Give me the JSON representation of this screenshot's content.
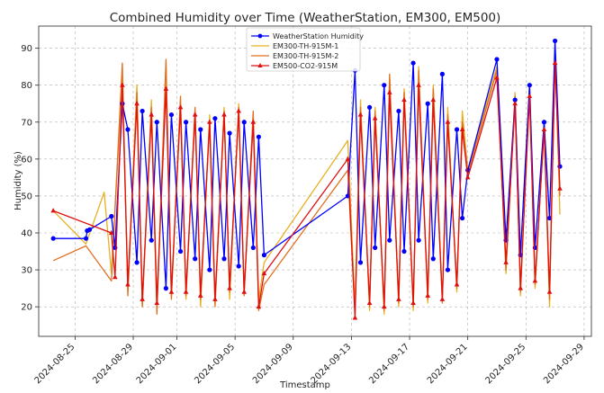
{
  "chart_data": {
    "type": "line",
    "title": "Combined Humidity over Time (WeatherStation, EM300, EM500)",
    "xlabel": "Timestamp",
    "ylabel": "Humidity (%)",
    "xlim": [
      "2024-08-22T12:00",
      "2024-09-29T12:00"
    ],
    "ylim": [
      12,
      96
    ],
    "yticks": [
      20,
      30,
      40,
      50,
      60,
      70,
      80,
      90
    ],
    "xticks": [
      "2024-08-25",
      "2024-08-29",
      "2024-09-01",
      "2024-09-05",
      "2024-09-09",
      "2024-09-13",
      "2024-09-17",
      "2024-09-21",
      "2024-09-25",
      "2024-09-29"
    ],
    "grid": true,
    "legend_position": "top-center",
    "series": [
      {
        "name": "WeatherStation Humidity",
        "color": "#0000ff",
        "marker": "circle",
        "points": [
          [
            "2024-08-23T12:00",
            38.5
          ],
          [
            "2024-08-25T18:00",
            38.5
          ],
          [
            "2024-08-25T20:00",
            40.6
          ],
          [
            "2024-08-26T00:00",
            40.9
          ],
          [
            "2024-08-27T12:00",
            44.5
          ],
          [
            "2024-08-27T18:00",
            36.0
          ],
          [
            "2024-08-28T06:00",
            75.0
          ],
          [
            "2024-08-28T15:00",
            68.0
          ],
          [
            "2024-08-29T06:00",
            32.0
          ],
          [
            "2024-08-29T15:00",
            73.0
          ],
          [
            "2024-08-30T06:00",
            38.0
          ],
          [
            "2024-08-30T15:00",
            70.0
          ],
          [
            "2024-08-31T06:00",
            25.0
          ],
          [
            "2024-08-31T15:00",
            72.0
          ],
          [
            "2024-09-01T06:00",
            35.0
          ],
          [
            "2024-09-01T15:00",
            70.0
          ],
          [
            "2024-09-02T06:00",
            33.0
          ],
          [
            "2024-09-02T15:00",
            68.0
          ],
          [
            "2024-09-03T06:00",
            30.0
          ],
          [
            "2024-09-03T15:00",
            71.0
          ],
          [
            "2024-09-04T06:00",
            33.0
          ],
          [
            "2024-09-04T15:00",
            67.0
          ],
          [
            "2024-09-05T06:00",
            31.0
          ],
          [
            "2024-09-05T15:00",
            70.0
          ],
          [
            "2024-09-06T06:00",
            36.0
          ],
          [
            "2024-09-06T15:00",
            66.0
          ],
          [
            "2024-09-07T00:00",
            34.0
          ],
          [
            "2024-09-12T18:00",
            50.0
          ],
          [
            "2024-09-13T06:00",
            84.0
          ],
          [
            "2024-09-13T15:00",
            32.0
          ],
          [
            "2024-09-14T06:00",
            74.0
          ],
          [
            "2024-09-14T15:00",
            36.0
          ],
          [
            "2024-09-15T06:00",
            80.0
          ],
          [
            "2024-09-15T15:00",
            38.0
          ],
          [
            "2024-09-16T06:00",
            73.0
          ],
          [
            "2024-09-16T15:00",
            35.0
          ],
          [
            "2024-09-17T06:00",
            86.0
          ],
          [
            "2024-09-17T15:00",
            38.0
          ],
          [
            "2024-09-18T06:00",
            75.0
          ],
          [
            "2024-09-18T15:00",
            33.0
          ],
          [
            "2024-09-19T06:00",
            83.0
          ],
          [
            "2024-09-19T15:00",
            30.0
          ],
          [
            "2024-09-20T06:00",
            68.0
          ],
          [
            "2024-09-20T15:00",
            44.0
          ],
          [
            "2024-09-21T00:00",
            57.0
          ],
          [
            "2024-09-23T00:00",
            87.0
          ],
          [
            "2024-09-23T15:00",
            38.0
          ],
          [
            "2024-09-24T06:00",
            76.0
          ],
          [
            "2024-09-24T15:00",
            34.0
          ],
          [
            "2024-09-25T06:00",
            80.0
          ],
          [
            "2024-09-25T15:00",
            36.0
          ],
          [
            "2024-09-26T06:00",
            70.0
          ],
          [
            "2024-09-26T15:00",
            44.0
          ],
          [
            "2024-09-27T00:00",
            92.0
          ],
          [
            "2024-09-27T08:00",
            58.0
          ]
        ]
      },
      {
        "name": "EM300-TH-915M-1",
        "color": "#e8b020",
        "marker": "none",
        "points": [
          [
            "2024-08-23T12:00",
            46.0
          ],
          [
            "2024-08-25T18:00",
            37.0
          ],
          [
            "2024-08-27T00:00",
            51.0
          ],
          [
            "2024-08-27T12:00",
            29.0
          ],
          [
            "2024-08-28T06:00",
            82.0
          ],
          [
            "2024-08-28T15:00",
            25.0
          ],
          [
            "2024-08-29T06:00",
            80.0
          ],
          [
            "2024-08-29T15:00",
            20.0
          ],
          [
            "2024-08-30T06:00",
            76.0
          ],
          [
            "2024-08-30T15:00",
            21.0
          ],
          [
            "2024-08-31T06:00",
            85.0
          ],
          [
            "2024-08-31T15:00",
            23.0
          ],
          [
            "2024-09-01T06:00",
            75.0
          ],
          [
            "2024-09-01T15:00",
            22.0
          ],
          [
            "2024-09-02T06:00",
            73.0
          ],
          [
            "2024-09-02T15:00",
            20.0
          ],
          [
            "2024-09-03T06:00",
            72.0
          ],
          [
            "2024-09-03T15:00",
            21.0
          ],
          [
            "2024-09-04T06:00",
            74.0
          ],
          [
            "2024-09-04T15:00",
            22.0
          ],
          [
            "2024-09-05T06:00",
            75.0
          ],
          [
            "2024-09-05T15:00",
            24.0
          ],
          [
            "2024-09-06T06:00",
            72.0
          ],
          [
            "2024-09-06T15:00",
            22.0
          ],
          [
            "2024-09-07T00:00",
            32.0
          ],
          [
            "2024-09-12T18:00",
            65.0
          ],
          [
            "2024-09-13T06:00",
            20.0
          ],
          [
            "2024-09-13T15:00",
            76.0
          ],
          [
            "2024-09-14T06:00",
            19.0
          ],
          [
            "2024-09-14T15:00",
            74.0
          ],
          [
            "2024-09-15T06:00",
            18.0
          ],
          [
            "2024-09-15T15:00",
            82.0
          ],
          [
            "2024-09-16T06:00",
            20.0
          ],
          [
            "2024-09-16T15:00",
            79.0
          ],
          [
            "2024-09-17T06:00",
            19.0
          ],
          [
            "2024-09-17T15:00",
            85.0
          ],
          [
            "2024-09-18T06:00",
            21.0
          ],
          [
            "2024-09-18T15:00",
            80.0
          ],
          [
            "2024-09-19T06:00",
            22.0
          ],
          [
            "2024-09-19T15:00",
            74.0
          ],
          [
            "2024-09-20T06:00",
            24.0
          ],
          [
            "2024-09-20T15:00",
            73.0
          ],
          [
            "2024-09-21T00:00",
            57.0
          ],
          [
            "2024-09-23T00:00",
            85.0
          ],
          [
            "2024-09-23T15:00",
            29.0
          ],
          [
            "2024-09-24T06:00",
            78.0
          ],
          [
            "2024-09-24T15:00",
            23.0
          ],
          [
            "2024-09-25T06:00",
            80.0
          ],
          [
            "2024-09-25T15:00",
            25.0
          ],
          [
            "2024-09-26T06:00",
            70.0
          ],
          [
            "2024-09-26T15:00",
            20.0
          ],
          [
            "2024-09-27T00:00",
            90.0
          ],
          [
            "2024-09-27T08:00",
            45.0
          ]
        ]
      },
      {
        "name": "EM300-TH-915M-2",
        "color": "#e07020",
        "marker": "none",
        "points": [
          [
            "2024-08-23T12:00",
            32.5
          ],
          [
            "2024-08-25T18:00",
            36.5
          ],
          [
            "2024-08-27T12:00",
            27.0
          ],
          [
            "2024-08-28T06:00",
            86.0
          ],
          [
            "2024-08-28T15:00",
            23.0
          ],
          [
            "2024-08-29T06:00",
            78.0
          ],
          [
            "2024-08-29T15:00",
            20.0
          ],
          [
            "2024-08-30T06:00",
            74.0
          ],
          [
            "2024-08-30T15:00",
            18.0
          ],
          [
            "2024-08-31T06:00",
            87.0
          ],
          [
            "2024-08-31T15:00",
            22.0
          ],
          [
            "2024-09-01T06:00",
            77.0
          ],
          [
            "2024-09-01T15:00",
            23.0
          ],
          [
            "2024-09-02T06:00",
            74.0
          ],
          [
            "2024-09-02T15:00",
            22.0
          ],
          [
            "2024-09-03T06:00",
            70.0
          ],
          [
            "2024-09-03T15:00",
            20.0
          ],
          [
            "2024-09-04T06:00",
            73.0
          ],
          [
            "2024-09-04T15:00",
            24.0
          ],
          [
            "2024-09-05T06:00",
            74.0
          ],
          [
            "2024-09-05T15:00",
            23.0
          ],
          [
            "2024-09-06T06:00",
            73.0
          ],
          [
            "2024-09-06T15:00",
            19.0
          ],
          [
            "2024-09-07T00:00",
            26.0
          ],
          [
            "2024-09-12T18:00",
            57.0
          ],
          [
            "2024-09-13T06:00",
            18.0
          ],
          [
            "2024-09-13T15:00",
            74.0
          ],
          [
            "2024-09-14T06:00",
            20.0
          ],
          [
            "2024-09-14T15:00",
            73.0
          ],
          [
            "2024-09-15T06:00",
            19.0
          ],
          [
            "2024-09-15T15:00",
            83.0
          ],
          [
            "2024-09-16T06:00",
            21.0
          ],
          [
            "2024-09-16T15:00",
            78.0
          ],
          [
            "2024-09-17T06:00",
            20.0
          ],
          [
            "2024-09-17T15:00",
            84.0
          ],
          [
            "2024-09-18T06:00",
            22.0
          ],
          [
            "2024-09-18T15:00",
            79.0
          ],
          [
            "2024-09-19T06:00",
            21.0
          ],
          [
            "2024-09-19T15:00",
            72.0
          ],
          [
            "2024-09-20T06:00",
            25.0
          ],
          [
            "2024-09-20T15:00",
            70.0
          ],
          [
            "2024-09-21T00:00",
            56.0
          ],
          [
            "2024-09-23T00:00",
            84.0
          ],
          [
            "2024-09-23T15:00",
            30.0
          ],
          [
            "2024-09-24T06:00",
            77.0
          ],
          [
            "2024-09-24T15:00",
            24.0
          ],
          [
            "2024-09-25T06:00",
            79.0
          ],
          [
            "2024-09-25T15:00",
            26.0
          ],
          [
            "2024-09-26T06:00",
            69.0
          ],
          [
            "2024-09-26T15:00",
            22.0
          ],
          [
            "2024-09-27T00:00",
            88.0
          ],
          [
            "2024-09-27T08:00",
            50.0
          ]
        ]
      },
      {
        "name": "EM500-CO2-915M",
        "color": "#e01010",
        "marker": "triangle",
        "points": [
          [
            "2024-08-23T12:00",
            46.0
          ],
          [
            "2024-08-27T12:00",
            40.0
          ],
          [
            "2024-08-27T18:00",
            28.0
          ],
          [
            "2024-08-28T06:00",
            80.0
          ],
          [
            "2024-08-28T15:00",
            26.0
          ],
          [
            "2024-08-29T06:00",
            75.0
          ],
          [
            "2024-08-29T15:00",
            22.0
          ],
          [
            "2024-08-30T06:00",
            72.0
          ],
          [
            "2024-08-30T15:00",
            21.0
          ],
          [
            "2024-08-31T06:00",
            79.0
          ],
          [
            "2024-08-31T15:00",
            24.0
          ],
          [
            "2024-09-01T06:00",
            74.0
          ],
          [
            "2024-09-01T15:00",
            24.0
          ],
          [
            "2024-09-02T06:00",
            72.0
          ],
          [
            "2024-09-02T15:00",
            23.0
          ],
          [
            "2024-09-03T06:00",
            70.0
          ],
          [
            "2024-09-03T15:00",
            22.0
          ],
          [
            "2024-09-04T06:00",
            72.0
          ],
          [
            "2024-09-04T15:00",
            25.0
          ],
          [
            "2024-09-05T06:00",
            73.0
          ],
          [
            "2024-09-05T15:00",
            24.0
          ],
          [
            "2024-09-06T06:00",
            70.0
          ],
          [
            "2024-09-06T15:00",
            20.0
          ],
          [
            "2024-09-07T00:00",
            29.0
          ],
          [
            "2024-09-12T18:00",
            60.0
          ],
          [
            "2024-09-13T06:00",
            17.0
          ],
          [
            "2024-09-13T15:00",
            72.0
          ],
          [
            "2024-09-14T06:00",
            21.0
          ],
          [
            "2024-09-14T15:00",
            71.0
          ],
          [
            "2024-09-15T06:00",
            20.0
          ],
          [
            "2024-09-15T15:00",
            78.0
          ],
          [
            "2024-09-16T06:00",
            22.0
          ],
          [
            "2024-09-16T15:00",
            76.0
          ],
          [
            "2024-09-17T06:00",
            21.0
          ],
          [
            "2024-09-17T15:00",
            80.0
          ],
          [
            "2024-09-18T06:00",
            23.0
          ],
          [
            "2024-09-18T15:00",
            76.0
          ],
          [
            "2024-09-19T06:00",
            22.0
          ],
          [
            "2024-09-19T15:00",
            70.0
          ],
          [
            "2024-09-20T06:00",
            26.0
          ],
          [
            "2024-09-20T15:00",
            68.0
          ],
          [
            "2024-09-21T00:00",
            55.0
          ],
          [
            "2024-09-23T00:00",
            82.0
          ],
          [
            "2024-09-23T15:00",
            32.0
          ],
          [
            "2024-09-24T06:00",
            75.0
          ],
          [
            "2024-09-24T15:00",
            25.0
          ],
          [
            "2024-09-25T06:00",
            77.0
          ],
          [
            "2024-09-25T15:00",
            27.0
          ],
          [
            "2024-09-26T06:00",
            68.0
          ],
          [
            "2024-09-26T15:00",
            24.0
          ],
          [
            "2024-09-27T00:00",
            86.0
          ],
          [
            "2024-09-27T08:00",
            52.0
          ]
        ]
      }
    ]
  }
}
